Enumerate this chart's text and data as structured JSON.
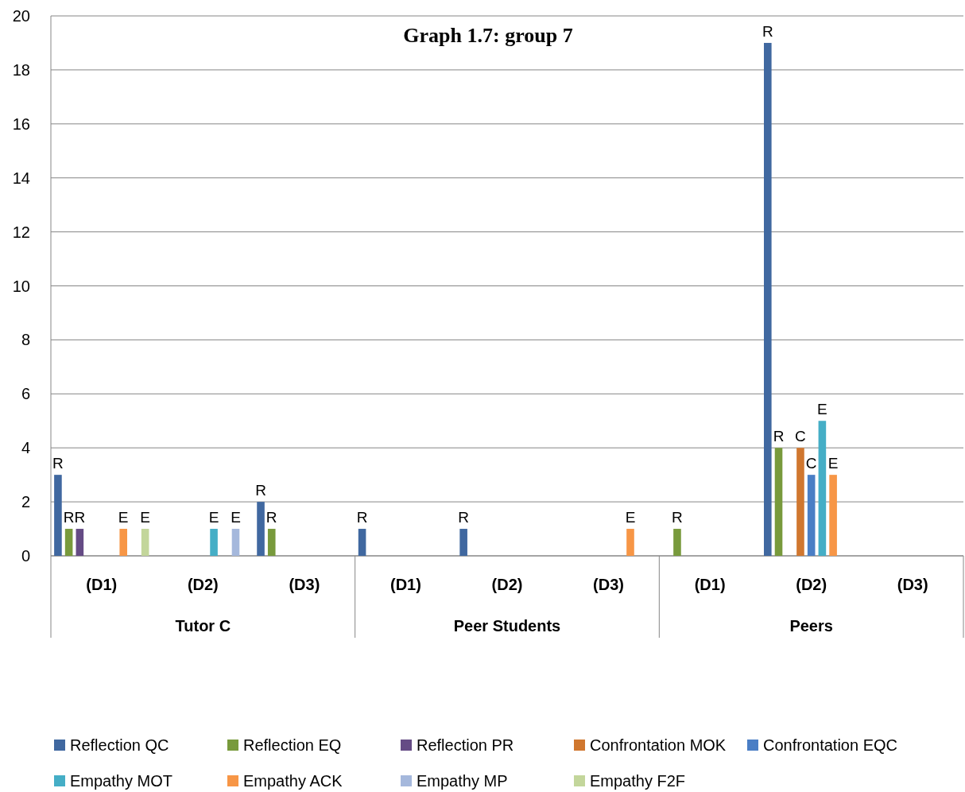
{
  "chart_data": {
    "type": "bar",
    "title": "Graph 1.7: group 7",
    "categories": [
      "(D1)",
      "(D2)",
      "(D3)",
      "(D1)",
      "(D2)",
      "(D3)",
      "(D1)",
      "(D2)",
      "(D3)"
    ],
    "annotations": [
      "Tutor C",
      "Peer Students",
      "Peers"
    ],
    "series": [
      {
        "name": "Reflection QC",
        "color": "#4068a0",
        "values": [
          3,
          0,
          2,
          1,
          1,
          0,
          0,
          19,
          0
        ],
        "value_labels": [
          "R",
          null,
          "R",
          "R",
          "R",
          null,
          null,
          "R",
          null
        ]
      },
      {
        "name": "Reflection EQ",
        "color": "#789a3c",
        "values": [
          1,
          0,
          1,
          0,
          0,
          0,
          1,
          4,
          0
        ],
        "value_labels": [
          "R",
          null,
          "R",
          null,
          null,
          null,
          "R",
          "R",
          null
        ]
      },
      {
        "name": "Reflection PR",
        "color": "#654b85",
        "values": [
          1,
          0,
          0,
          0,
          0,
          0,
          0,
          0,
          0
        ],
        "value_labels": [
          "R",
          null,
          null,
          null,
          null,
          null,
          null,
          null,
          null
        ]
      },
      {
        "name": "Confrontation MOK",
        "color": "#d0772f",
        "values": [
          0,
          0,
          0,
          0,
          0,
          0,
          0,
          4,
          0
        ],
        "value_labels": [
          null,
          null,
          null,
          null,
          null,
          null,
          null,
          "C",
          null
        ]
      },
      {
        "name": "Confrontation EQC",
        "color": "#4a7ec5",
        "values": [
          0,
          0,
          0,
          0,
          0,
          0,
          0,
          3,
          0
        ],
        "value_labels": [
          null,
          null,
          null,
          null,
          null,
          null,
          null,
          "C",
          null
        ]
      },
      {
        "name": "Empathy MOT",
        "color": "#45aec6",
        "values": [
          0,
          1,
          0,
          0,
          0,
          0,
          0,
          5,
          0
        ],
        "value_labels": [
          null,
          "E",
          null,
          null,
          null,
          null,
          null,
          "E",
          null
        ]
      },
      {
        "name": "Empathy ACK",
        "color": "#f79646",
        "values": [
          1,
          0,
          0,
          0,
          0,
          1,
          0,
          3,
          0
        ],
        "value_labels": [
          "E",
          null,
          null,
          null,
          null,
          "E",
          null,
          "E",
          null
        ]
      },
      {
        "name": "Empathy MP",
        "color": "#a5b8dc",
        "values": [
          0,
          1,
          0,
          0,
          0,
          0,
          0,
          0,
          0
        ],
        "value_labels": [
          null,
          "E",
          null,
          null,
          null,
          null,
          null,
          null,
          null
        ]
      },
      {
        "name": "Empathy F2F",
        "color": "#c3d69b",
        "values": [
          1,
          0,
          0,
          0,
          0,
          0,
          0,
          0,
          0
        ],
        "value_labels": [
          "E",
          null,
          null,
          null,
          null,
          null,
          null,
          null,
          null
        ]
      }
    ],
    "ylim": [
      0,
      20
    ],
    "yticks": [
      0,
      2,
      4,
      6,
      8,
      10,
      12,
      14,
      16,
      18,
      20
    ],
    "grid": "y",
    "legend": "bottom"
  }
}
